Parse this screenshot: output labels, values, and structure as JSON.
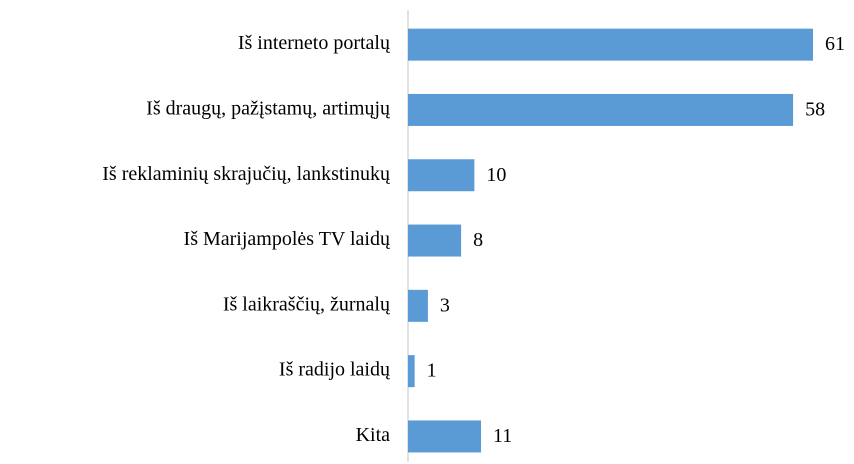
{
  "chart_data": {
    "type": "barh",
    "categories": [
      "Iš interneto portalų",
      "Iš draugų, pažįstamų, artimųjų",
      "Iš reklaminių skrajučių, lankstinukų",
      "Iš Marijampolės TV laidų",
      "Iš laikraščių, žurnalų",
      "Iš radijo laidų",
      "Kita"
    ],
    "values": [
      61,
      58,
      10,
      8,
      3,
      1,
      11
    ],
    "color": "#5b9bd5"
  }
}
